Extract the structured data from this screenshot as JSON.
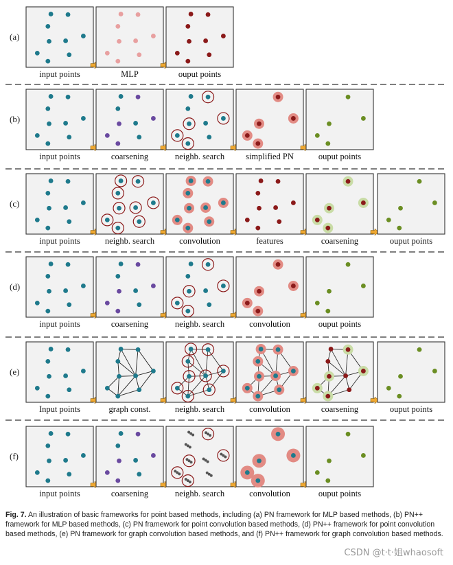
{
  "figure": {
    "number": "Fig. 7.",
    "rows": [
      {
        "label": "(a)",
        "panels": [
          "input points",
          "MLP",
          "ouput points"
        ]
      },
      {
        "label": "(b)",
        "panels": [
          "input points",
          "coarsening",
          "neighb. search",
          "simplified PN",
          "ouput points"
        ]
      },
      {
        "label": "(c)",
        "panels": [
          "input points",
          "neighb. search",
          "convolution",
          "features",
          "coarsening",
          "ouput points"
        ]
      },
      {
        "label": "(d)",
        "panels": [
          "input points",
          "coarsening",
          "neighb. search",
          "convolution",
          "ouput points"
        ]
      },
      {
        "label": "(e)",
        "panels": [
          "Input points",
          "graph const.",
          "neighb. search",
          "convolution",
          "coarsening",
          "ouput points"
        ]
      },
      {
        "label": "(f)",
        "panels": [
          "input points",
          "coarsening",
          "neighb. search",
          "convolution",
          "ouput points"
        ]
      }
    ],
    "colors": {
      "teal": "#1f7a8c",
      "pink": "#e8a0a0",
      "dark_red": "#8b1a1a",
      "purple": "#6a4aa0",
      "green": "#6b8e23",
      "halo_red": "#e28b84",
      "halo_green": "#c9dca6",
      "arrow": "#f0a830",
      "panel_fill": "#f2f2f2",
      "circle": "#8b1a1a"
    }
  },
  "caption": "An illustration of basic frameworks for point based methods, including (a) PN framework for MLP based methods, (b) PN++ framework for MLP based methods, (c) PN framework for point convolution based methods, (d) PN++ framework for point convolution based methods, (e) PN framework for graph convolution based methods, and (f) PN++ framework for graph convolution based methods.",
  "watermark": "CSDN @t·t·姐whaosoft"
}
